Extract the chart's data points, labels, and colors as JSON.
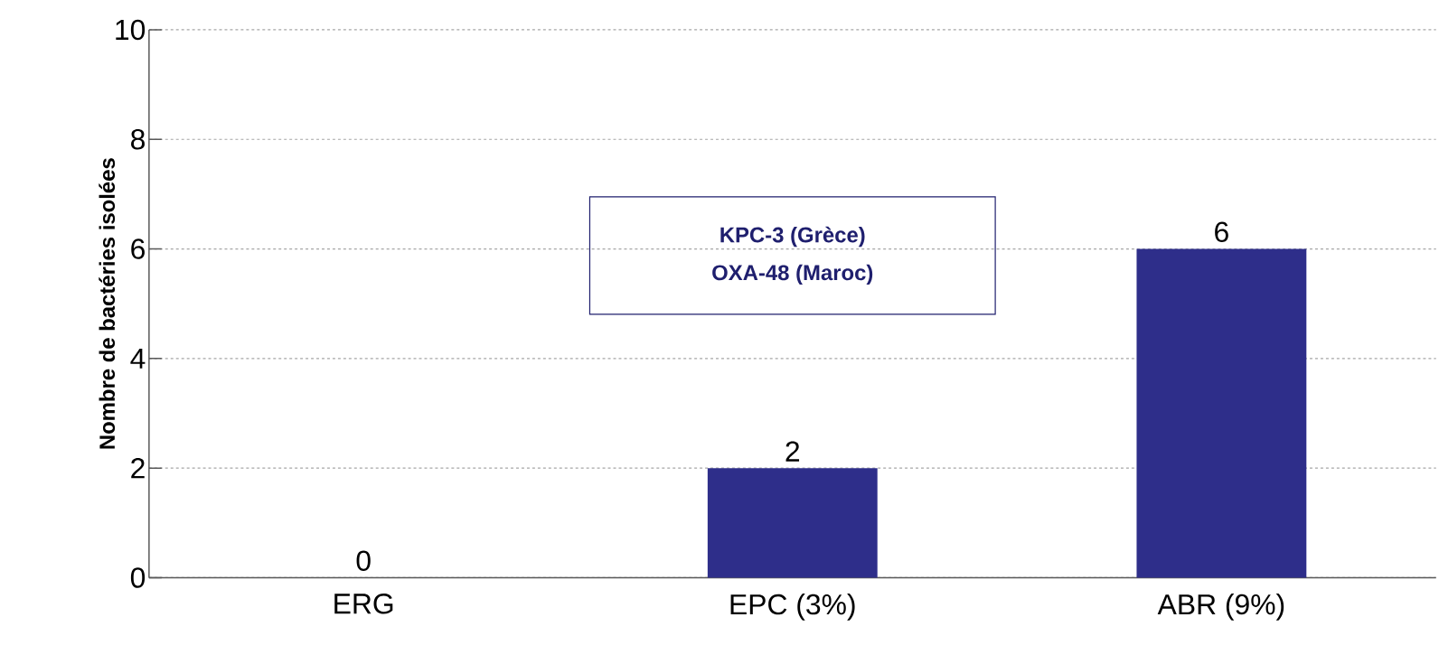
{
  "chart_data": {
    "type": "bar",
    "ylabel": "Nombre de bactéries isolées",
    "categories": [
      "ERG",
      "EPC (3%)",
      "ABR (9%)"
    ],
    "values": [
      0,
      2,
      6
    ],
    "color": "#2e2e8a",
    "ylim": [
      0,
      10
    ],
    "yticks": [
      0,
      2,
      4,
      6,
      8,
      10
    ],
    "grid": "y",
    "data_labels": true,
    "annotations": [
      "KPC-3 (Grèce)",
      "OXA-48 (Maroc)"
    ]
  }
}
